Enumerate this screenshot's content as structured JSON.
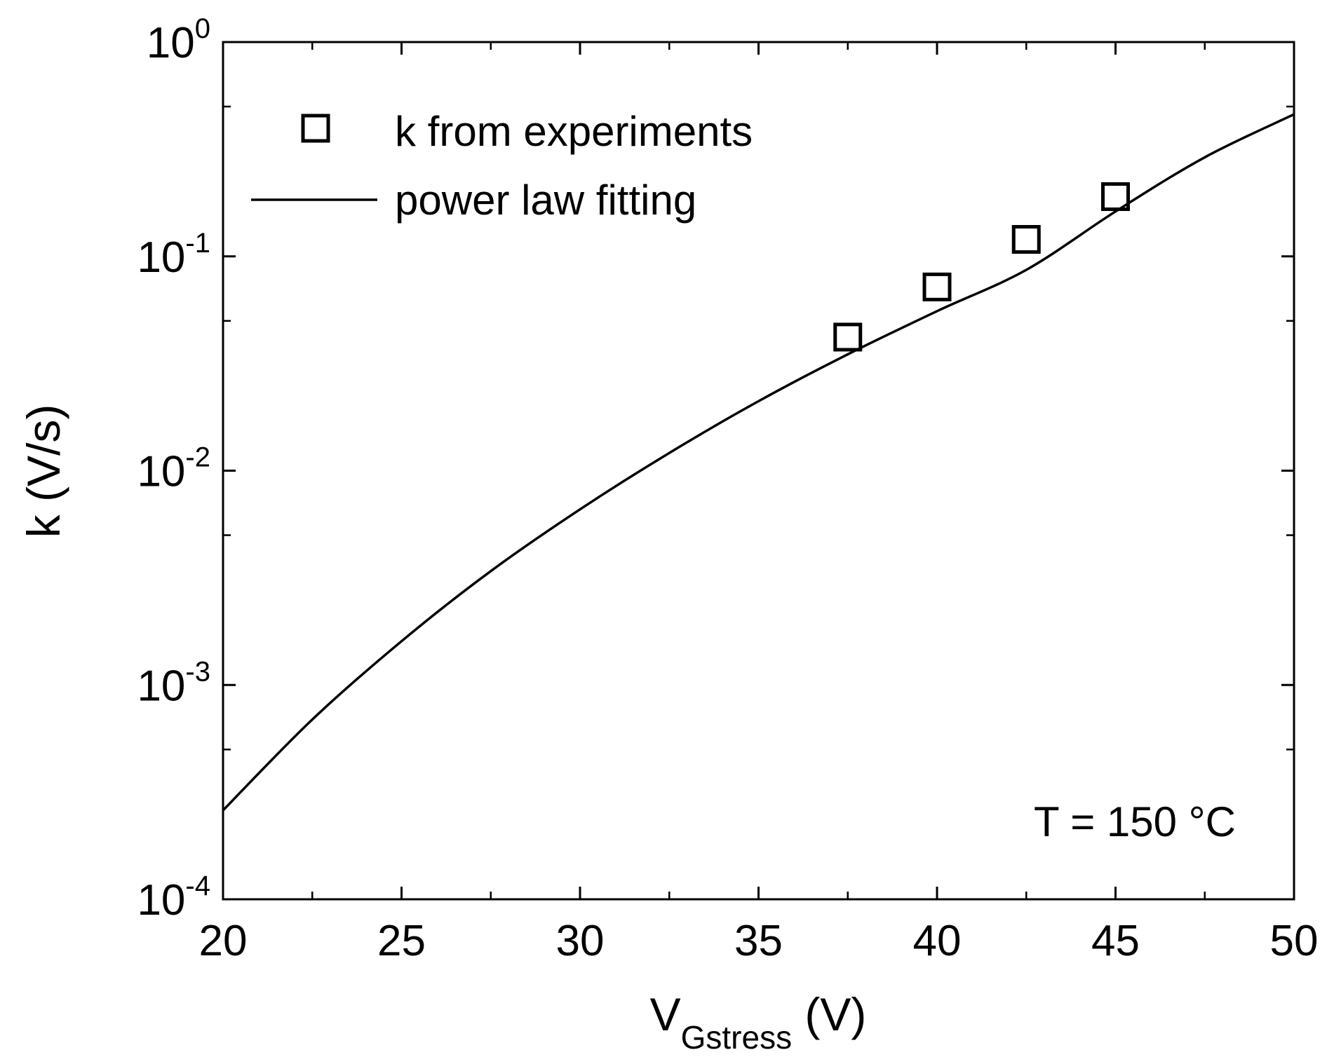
{
  "chart_data": {
    "type": "scatter",
    "x_scale": "linear",
    "y_scale": "log",
    "xlim": [
      20,
      50
    ],
    "ylim": [
      0.0001,
      1
    ],
    "x_ticks": [
      20,
      25,
      30,
      35,
      40,
      45,
      50
    ],
    "x_tick_labels": [
      "20",
      "25",
      "30",
      "35",
      "40",
      "45",
      "50"
    ],
    "x_minor_ticks": [
      22.5,
      27.5,
      32.5,
      37.5,
      42.5,
      47.5
    ],
    "y_ticks": [
      {
        "value": 0.0001,
        "base": "10",
        "exp": "-4"
      },
      {
        "value": 0.001,
        "base": "10",
        "exp": "-3"
      },
      {
        "value": 0.01,
        "base": "10",
        "exp": "-2"
      },
      {
        "value": 0.1,
        "base": "10",
        "exp": "-1"
      },
      {
        "value": 1,
        "base": "10",
        "exp": "0"
      }
    ],
    "y_minor_ticks": [
      0.0005,
      0.005,
      0.05,
      0.5
    ],
    "xlabel": {
      "main": "V",
      "sub": "Gstress",
      "unit": " (V)"
    },
    "ylabel": "k (V/s)",
    "legend_position": "top-left",
    "annotation": "T = 150 °C",
    "series": [
      {
        "name": "k from experiments",
        "kind": "markers",
        "marker": "open-square",
        "x": [
          37.5,
          40,
          42.5,
          45
        ],
        "y": [
          0.042,
          0.072,
          0.12,
          0.19
        ]
      },
      {
        "name": "power law fitting",
        "kind": "line",
        "x": [
          20,
          22.5,
          25,
          27.5,
          30,
          32.5,
          35,
          37.5,
          40,
          42.5,
          45,
          47.5,
          50
        ],
        "y": [
          0.00026,
          0.00069,
          0.0016,
          0.0034,
          0.0066,
          0.0121,
          0.0211,
          0.0349,
          0.0555,
          0.0865,
          0.162,
          0.29,
          0.46
        ]
      }
    ]
  }
}
